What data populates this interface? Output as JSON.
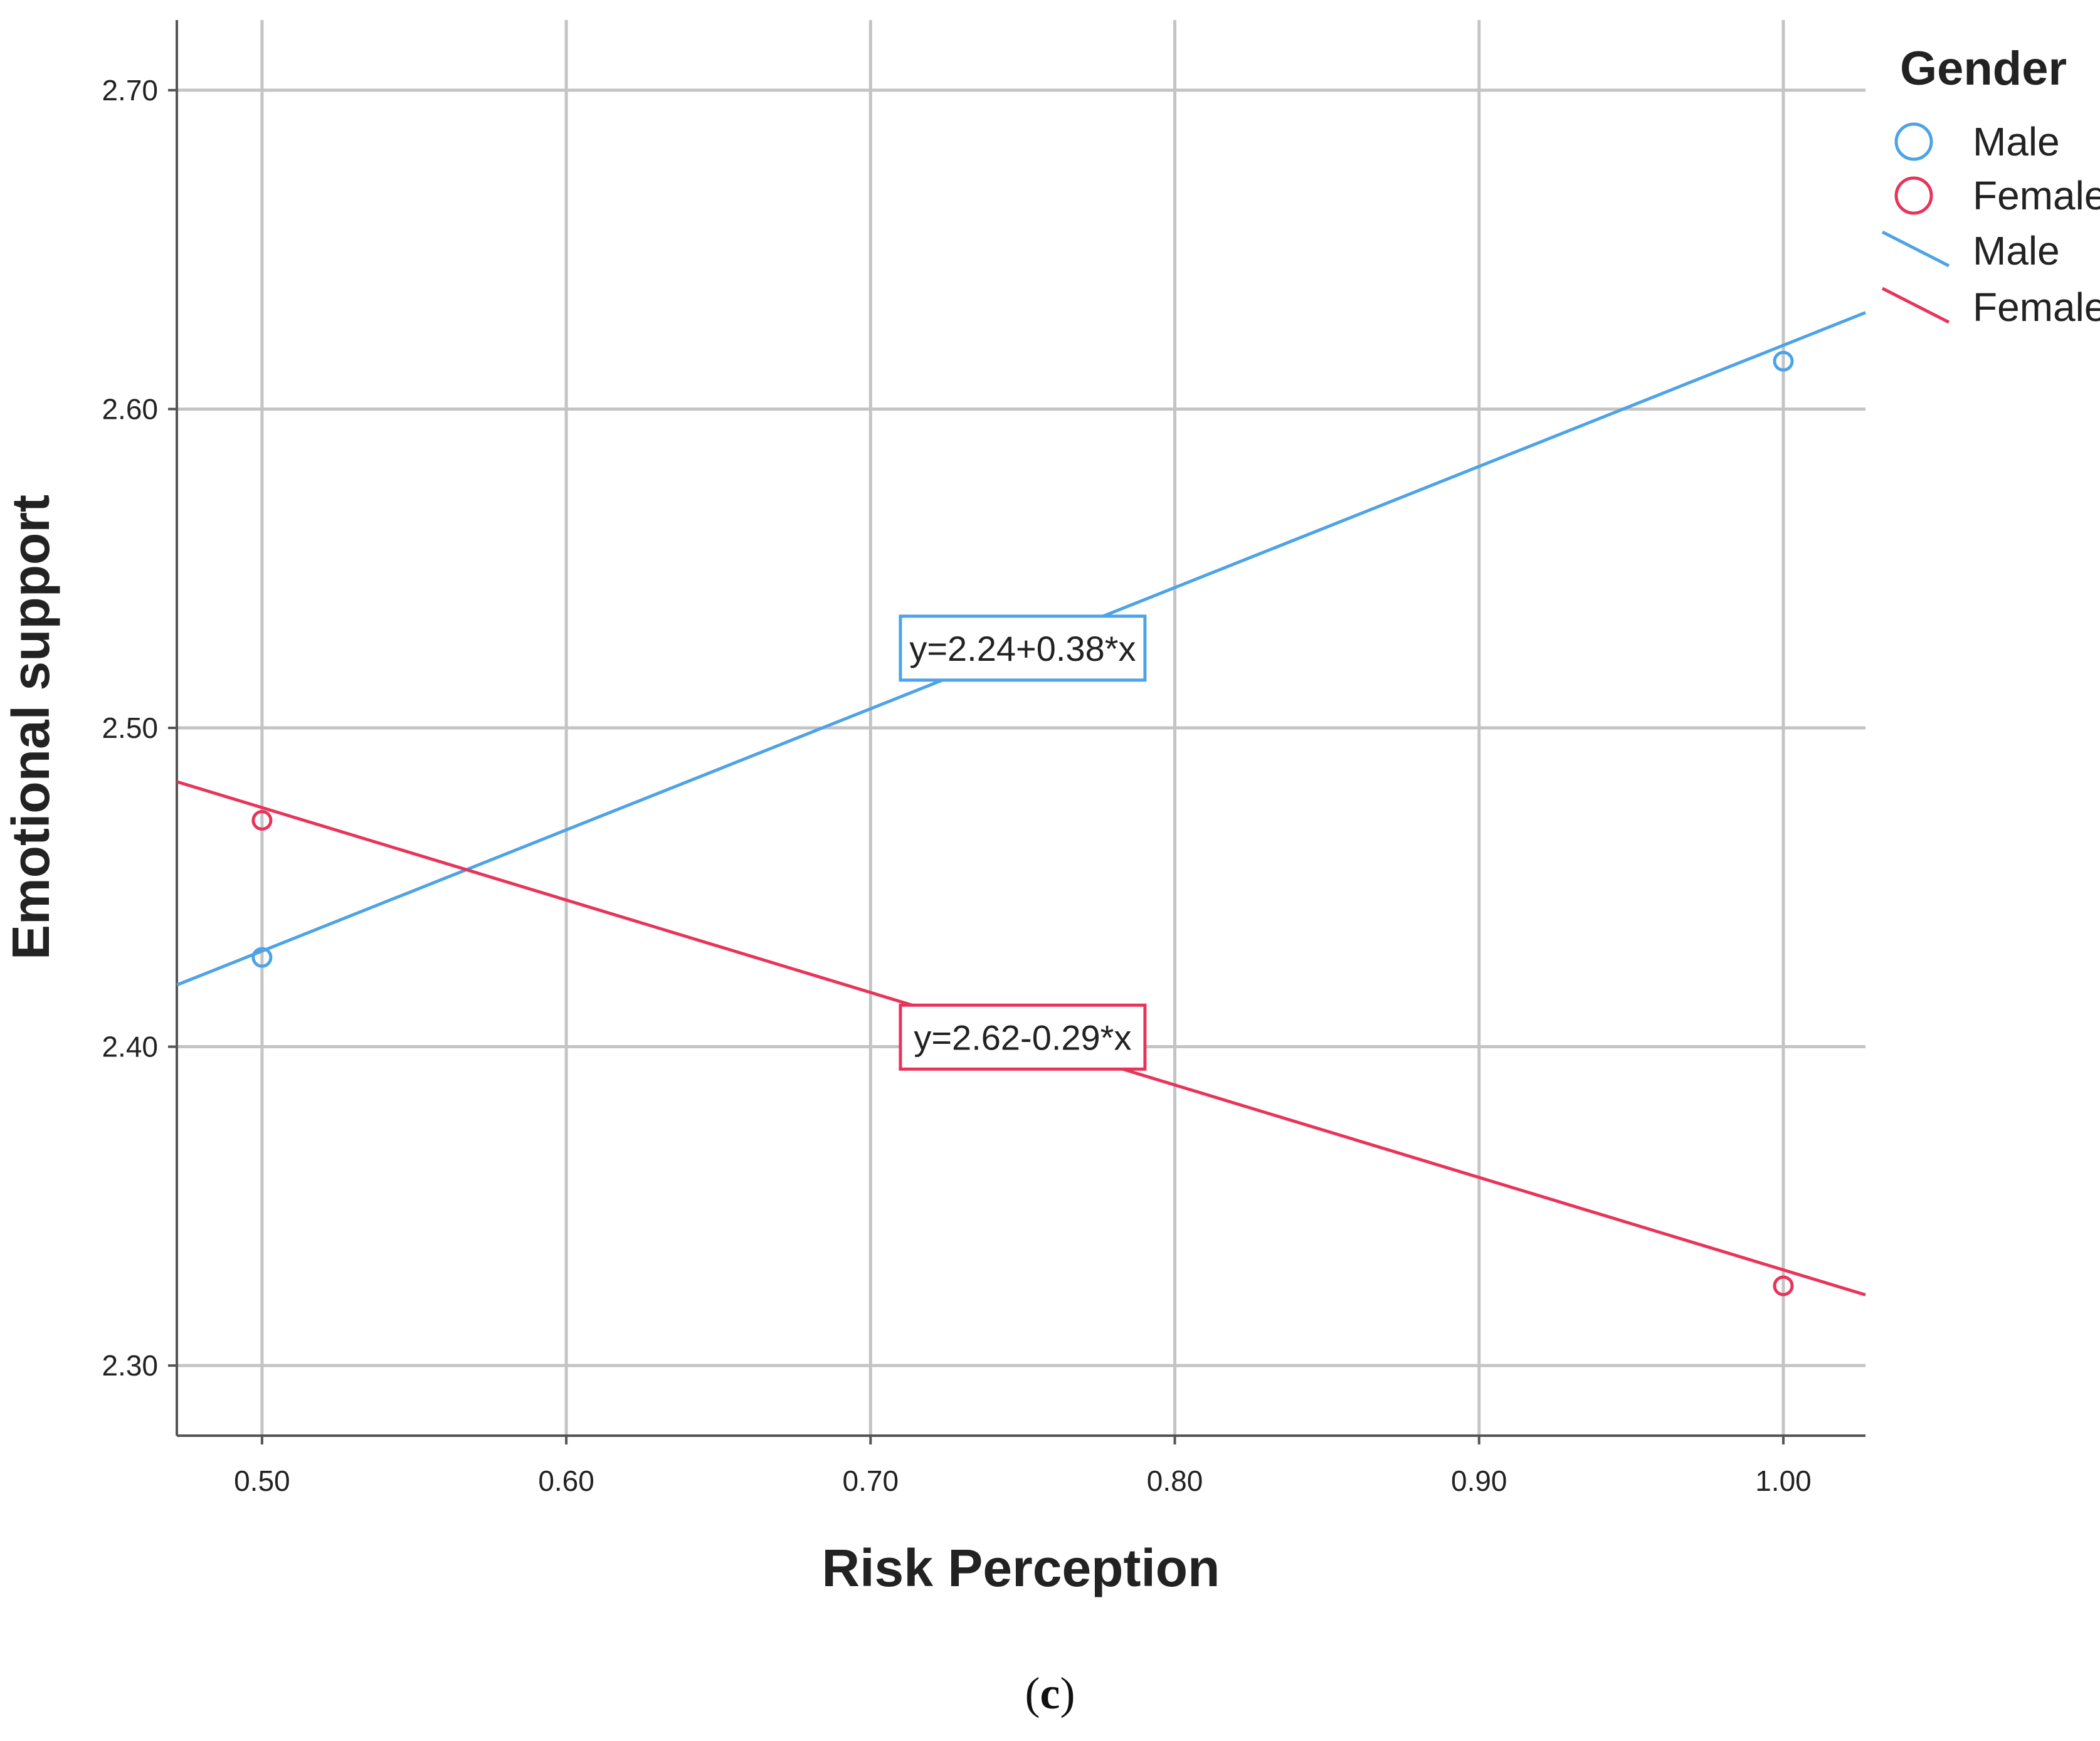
{
  "chart_data": {
    "type": "scatter",
    "xlabel": "Risk Perception",
    "ylabel": "Emotional support",
    "xlim": [
      0.472,
      1.027
    ],
    "ylim": [
      2.278,
      2.722
    ],
    "xticks": [
      0.5,
      0.6,
      0.7,
      0.8,
      0.9,
      1.0
    ],
    "xtick_labels": [
      "0.50",
      "0.60",
      "0.70",
      "0.80",
      "0.90",
      "1.00"
    ],
    "yticks": [
      2.3,
      2.4,
      2.5,
      2.6,
      2.7
    ],
    "ytick_labels": [
      "2.30",
      "2.40",
      "2.50",
      "2.60",
      "2.70"
    ],
    "grid": true,
    "legend": {
      "title": "Gender",
      "placement": "top-right",
      "entries": [
        {
          "label": "Male",
          "kind": "marker",
          "series": "male"
        },
        {
          "label": "Female",
          "kind": "marker",
          "series": "female"
        },
        {
          "label": "Male",
          "kind": "line",
          "series": "male"
        },
        {
          "label": "Female",
          "kind": "line",
          "series": "female"
        }
      ]
    },
    "series": [
      {
        "id": "male",
        "name": "Male",
        "color": "#4da3e6",
        "points": [
          {
            "x": 0.5,
            "y": 2.428
          },
          {
            "x": 1.0,
            "y": 2.615
          }
        ],
        "fit": {
          "intercept": 2.24,
          "slope": 0.38,
          "equation": "y=2.24+0.38*x",
          "label_at": {
            "x": 0.75,
            "y": 2.525
          }
        }
      },
      {
        "id": "female",
        "name": "Female",
        "color": "#e8345a",
        "points": [
          {
            "x": 0.5,
            "y": 2.471
          },
          {
            "x": 1.0,
            "y": 2.325
          }
        ],
        "fit": {
          "intercept": 2.62,
          "slope": -0.29,
          "equation": "y=2.62-0.29*x",
          "label_at": {
            "x": 0.75,
            "y": 2.403
          }
        }
      }
    ]
  },
  "caption": {
    "open": "(",
    "letter": "c",
    "close": ")"
  }
}
